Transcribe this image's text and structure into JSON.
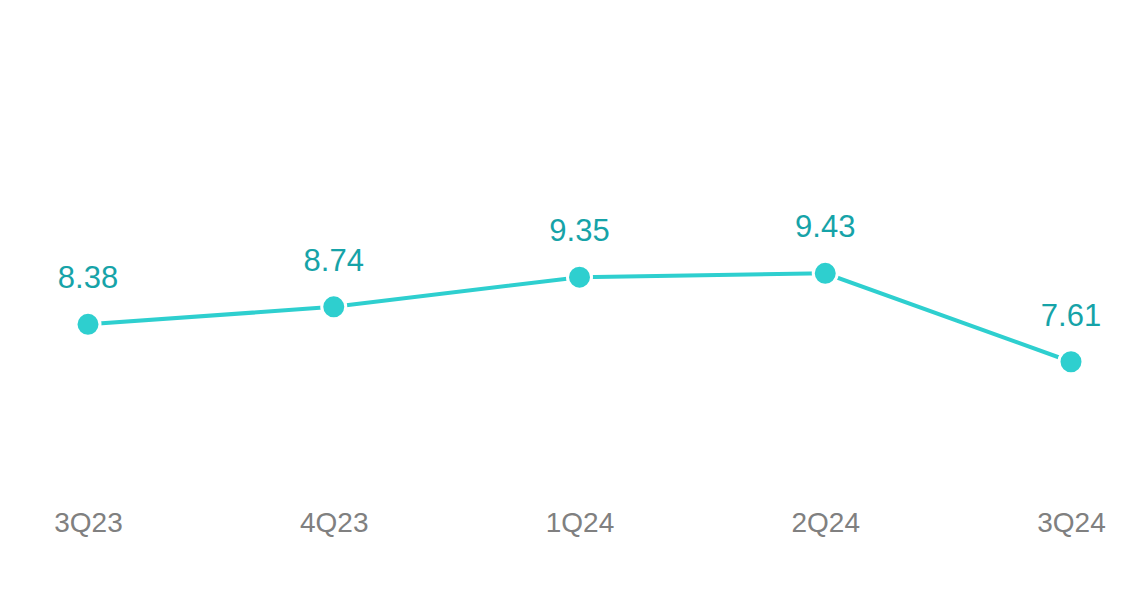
{
  "chart_data": {
    "type": "line",
    "categories": [
      "3Q23",
      "4Q23",
      "1Q24",
      "2Q24",
      "3Q24"
    ],
    "values": [
      8.38,
      8.74,
      9.35,
      9.43,
      7.61
    ],
    "color": "#2ecfcf",
    "marker": "circle",
    "ylim": [
      6,
      11
    ],
    "grid": false,
    "data_labels": true,
    "tick_labels": "x"
  }
}
